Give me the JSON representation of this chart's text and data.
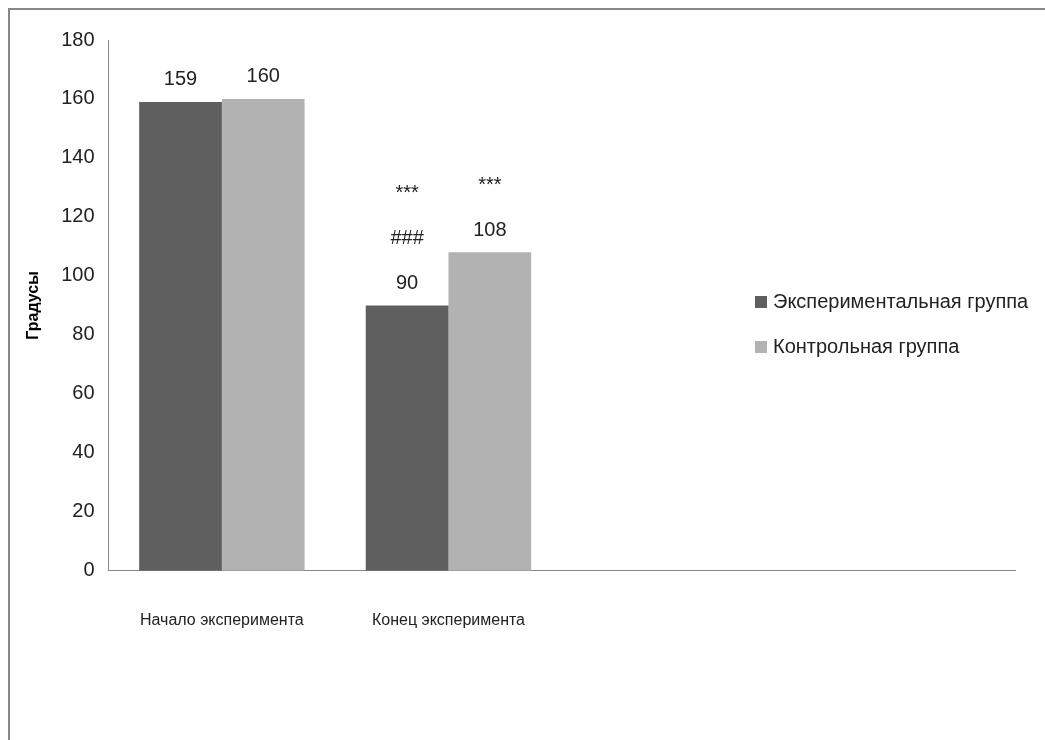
{
  "chart_data": {
    "type": "bar",
    "ylabel": "Градусы",
    "categories": [
      "Начало эксперимента",
      "Конец эксперимента",
      null,
      null
    ],
    "series": [
      {
        "name": "Экспериментальная группа",
        "color": "#5f5f5f",
        "values": [
          159,
          90,
          null,
          null
        ]
      },
      {
        "name": "Контрольная группа",
        "color": "#b2b2b2",
        "values": [
          160,
          108,
          null,
          null
        ]
      }
    ],
    "ylim": [
      0,
      180
    ],
    "yticks": [
      0,
      20,
      40,
      60,
      80,
      100,
      120,
      140,
      160,
      180
    ],
    "grid": false,
    "legend": "right",
    "data_labels": true,
    "annotations": [
      "***",
      "***",
      "###"
    ]
  }
}
